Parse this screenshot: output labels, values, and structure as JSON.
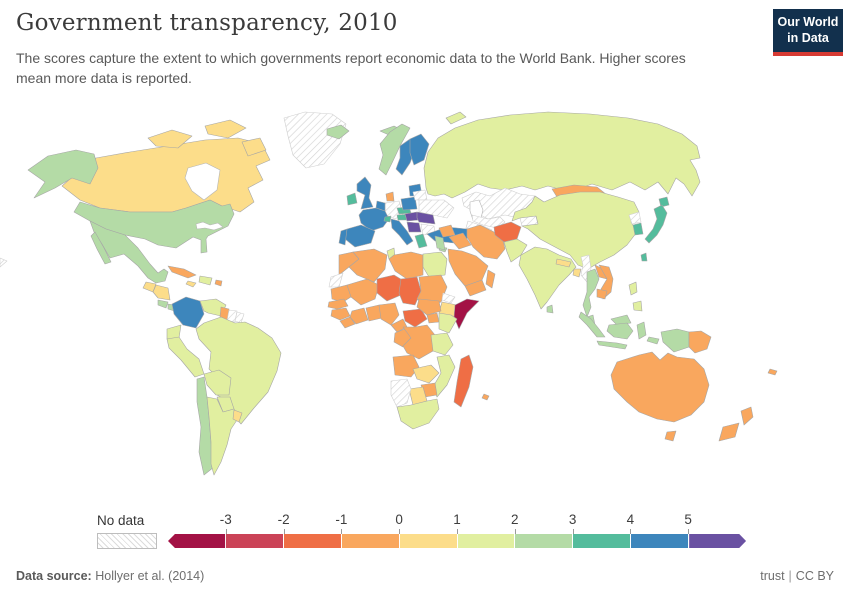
{
  "header": {
    "title": "Government transparency, 2010",
    "subtitle": "The scores capture the extent to which governments report economic data to the World Bank. Higher scores mean more data is reported.",
    "logo": {
      "line1": "Our World",
      "line2": "in Data",
      "bg": "#12304d",
      "accent": "#d73a33"
    }
  },
  "legend": {
    "no_data_label": "No data",
    "ticks": [
      "-3",
      "-2",
      "-1",
      "0",
      "1",
      "2",
      "3",
      "4",
      "5"
    ]
  },
  "map": {
    "ocean": "#ffffff",
    "border_stroke": "#a6a6a6",
    "no_data_stroke": "#cfcfcf"
  },
  "footer": {
    "source_label": "Data source:",
    "source": "Hollyer et al. (2014)",
    "action": "trust",
    "separator": "|",
    "license": "CC BY"
  },
  "chart_data": {
    "type": "choropleth",
    "title": "Government transparency, 2010",
    "colorscale": {
      "domain": [
        -3,
        -2,
        -1,
        0,
        1,
        2,
        3,
        4,
        5
      ],
      "open_ended": true,
      "colors": [
        "#a31245",
        "#cb4357",
        "#ef6e45",
        "#f9a75e",
        "#fcdd8a",
        "#e1efa0",
        "#b4dba6",
        "#54bc9c",
        "#3d86bc",
        "#6a51a2"
      ]
    },
    "entities": [
      {
        "name": "Greenland",
        "value": null
      },
      {
        "name": "Suriname",
        "value": null
      },
      {
        "name": "French Guiana",
        "value": null
      },
      {
        "name": "Germany",
        "value": null
      },
      {
        "name": "Bulgaria",
        "value": null
      },
      {
        "name": "Ukraine",
        "value": null
      },
      {
        "name": "Belarus",
        "value": null
      },
      {
        "name": "Kazakhstan",
        "value": null
      },
      {
        "name": "Uzbekistan",
        "value": null
      },
      {
        "name": "Turkmenistan",
        "value": null
      },
      {
        "name": "Kyrgyzstan",
        "value": null
      },
      {
        "name": "Western Sahara",
        "value": null
      },
      {
        "name": "Eritrea",
        "value": null
      },
      {
        "name": "Namibia",
        "value": null
      },
      {
        "name": "North Korea",
        "value": null
      },
      {
        "name": "Myanmar",
        "value": null
      },
      {
        "name": "Somalia",
        "value": -3.5
      },
      {
        "name": "Niger",
        "value": -1.5
      },
      {
        "name": "Chad",
        "value": -1.5
      },
      {
        "name": "Central African Republic",
        "value": -1.5
      },
      {
        "name": "Afghanistan",
        "value": -1.5
      },
      {
        "name": "Madagascar",
        "value": -1.5
      },
      {
        "name": "Cuba",
        "value": -0.5
      },
      {
        "name": "Trinidad and Tobago",
        "value": -0.5
      },
      {
        "name": "Guyana",
        "value": -0.5
      },
      {
        "name": "Denmark",
        "value": -0.5
      },
      {
        "name": "Morocco",
        "value": -0.5
      },
      {
        "name": "Algeria",
        "value": -0.5
      },
      {
        "name": "Libya",
        "value": -0.5
      },
      {
        "name": "Mauritania",
        "value": -0.5
      },
      {
        "name": "Mali",
        "value": -0.5
      },
      {
        "name": "Senegal",
        "value": -0.5
      },
      {
        "name": "Guinea",
        "value": -0.5
      },
      {
        "name": "Liberia",
        "value": -0.5
      },
      {
        "name": "Cote d'Ivoire",
        "value": -0.5
      },
      {
        "name": "Ghana",
        "value": -0.5
      },
      {
        "name": "Nigeria",
        "value": -0.5
      },
      {
        "name": "Cameroon",
        "value": -0.5
      },
      {
        "name": "Congo",
        "value": -0.5
      },
      {
        "name": "Democratic Republic of Congo",
        "value": -0.5
      },
      {
        "name": "South Sudan",
        "value": -0.5
      },
      {
        "name": "Uganda",
        "value": -0.5
      },
      {
        "name": "Sudan",
        "value": -0.5
      },
      {
        "name": "Angola",
        "value": -0.5
      },
      {
        "name": "Zimbabwe",
        "value": -0.5
      },
      {
        "name": "Mauritius",
        "value": -0.5
      },
      {
        "name": "Syria",
        "value": -0.5
      },
      {
        "name": "Iraq",
        "value": -0.5
      },
      {
        "name": "Saudi Arabia",
        "value": -0.5
      },
      {
        "name": "Yemen",
        "value": -0.5
      },
      {
        "name": "Oman",
        "value": -0.5
      },
      {
        "name": "Iran",
        "value": -0.5
      },
      {
        "name": "Mongolia",
        "value": -0.5
      },
      {
        "name": "Laos",
        "value": -0.5
      },
      {
        "name": "Vietnam",
        "value": -0.5
      },
      {
        "name": "Cambodia",
        "value": -0.5
      },
      {
        "name": "Papua New Guinea",
        "value": -0.5
      },
      {
        "name": "Australia",
        "value": -0.5
      },
      {
        "name": "New Zealand",
        "value": -0.5
      },
      {
        "name": "Fiji",
        "value": -0.5
      },
      {
        "name": "Canada",
        "value": 0.5
      },
      {
        "name": "Guatemala",
        "value": 0.5
      },
      {
        "name": "Honduras",
        "value": 0.5
      },
      {
        "name": "Jamaica",
        "value": 0.5
      },
      {
        "name": "Uruguay",
        "value": 0.5
      },
      {
        "name": "Ethiopia",
        "value": 0.5
      },
      {
        "name": "Zambia",
        "value": 0.5
      },
      {
        "name": "Botswana",
        "value": 0.5
      },
      {
        "name": "Nepal",
        "value": 0.5
      },
      {
        "name": "Bangladesh",
        "value": 0.5
      },
      {
        "name": "Russia",
        "value": 1.5
      },
      {
        "name": "Venezuela",
        "value": 1.5
      },
      {
        "name": "Brazil",
        "value": 1.5
      },
      {
        "name": "Ecuador",
        "value": 1.5
      },
      {
        "name": "Peru",
        "value": 1.5
      },
      {
        "name": "Bolivia",
        "value": 1.5
      },
      {
        "name": "Paraguay",
        "value": 1.5
      },
      {
        "name": "Argentina",
        "value": 1.5
      },
      {
        "name": "Haiti",
        "value": 1.5
      },
      {
        "name": "Egypt",
        "value": 1.5
      },
      {
        "name": "Tunisia",
        "value": 1.5
      },
      {
        "name": "Kenya",
        "value": 1.5
      },
      {
        "name": "Tanzania",
        "value": 1.5
      },
      {
        "name": "Mozambique",
        "value": 1.5
      },
      {
        "name": "South Africa",
        "value": 1.5
      },
      {
        "name": "China",
        "value": 1.5
      },
      {
        "name": "India",
        "value": 1.5
      },
      {
        "name": "Pakistan",
        "value": 1.5
      },
      {
        "name": "Philippines",
        "value": 1.5
      },
      {
        "name": "United States",
        "value": 2.5
      },
      {
        "name": "Mexico",
        "value": 2.5
      },
      {
        "name": "Costa Rica",
        "value": 2.5
      },
      {
        "name": "Panama",
        "value": 2.5
      },
      {
        "name": "Chile",
        "value": 2.5
      },
      {
        "name": "Iceland",
        "value": 2.5
      },
      {
        "name": "Norway",
        "value": 2.5
      },
      {
        "name": "Israel",
        "value": 2.5
      },
      {
        "name": "Thailand",
        "value": 2.5
      },
      {
        "name": "Malaysia",
        "value": 2.5
      },
      {
        "name": "Indonesia",
        "value": 2.5
      },
      {
        "name": "Sri Lanka",
        "value": 2.5
      },
      {
        "name": "Cyprus",
        "value": 2.5
      },
      {
        "name": "Ireland",
        "value": 3.5
      },
      {
        "name": "Switzerland",
        "value": 3.5
      },
      {
        "name": "Czechia",
        "value": 3.5
      },
      {
        "name": "Austria",
        "value": 3.5
      },
      {
        "name": "Greece",
        "value": 3.5
      },
      {
        "name": "Japan",
        "value": 3.5
      },
      {
        "name": "South Korea",
        "value": 3.5
      },
      {
        "name": "Taiwan",
        "value": 3.5
      },
      {
        "name": "Colombia",
        "value": 4.5
      },
      {
        "name": "United Kingdom",
        "value": 4.5
      },
      {
        "name": "France",
        "value": 4.5
      },
      {
        "name": "Spain",
        "value": 4.5
      },
      {
        "name": "Portugal",
        "value": 4.5
      },
      {
        "name": "Netherlands",
        "value": 4.5
      },
      {
        "name": "Sweden",
        "value": 4.5
      },
      {
        "name": "Finland",
        "value": 4.5
      },
      {
        "name": "Poland",
        "value": 4.5
      },
      {
        "name": "Lithuania",
        "value": 4.5
      },
      {
        "name": "Italy",
        "value": 4.5
      },
      {
        "name": "Turkey",
        "value": 4.5
      },
      {
        "name": "Hungary",
        "value": 5.5
      },
      {
        "name": "Romania",
        "value": 5.5
      },
      {
        "name": "Serbia",
        "value": 5.5
      }
    ]
  }
}
